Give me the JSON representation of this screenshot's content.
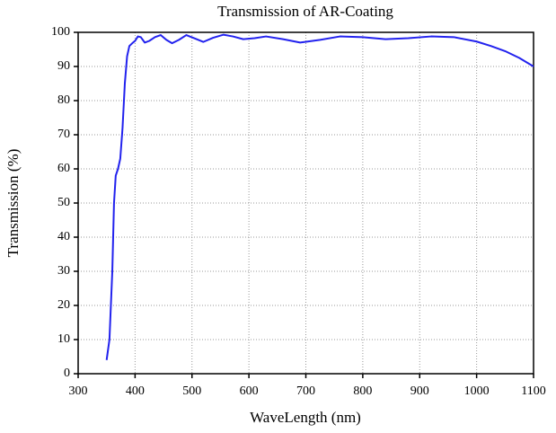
{
  "chart_data": {
    "type": "line",
    "title": "Transmission of AR-Coating",
    "x_label": "WaveLength (nm)",
    "y_label": "Transmission (%)",
    "x": [
      350,
      355,
      360,
      363,
      366,
      370,
      374,
      378,
      382,
      386,
      390,
      395,
      400,
      405,
      410,
      417,
      425,
      435,
      445,
      455,
      465,
      477,
      490,
      505,
      520,
      537,
      555,
      572,
      590,
      610,
      630,
      660,
      690,
      725,
      760,
      800,
      840,
      880,
      920,
      960,
      1000,
      1025,
      1050,
      1075,
      1100
    ],
    "series": [
      {
        "name": "Transmission",
        "color": "#2222ee",
        "values": [
          4,
          10,
          30,
          50,
          58,
          60,
          63,
          72,
          85,
          93,
          96,
          96.8,
          97.5,
          98.8,
          98.6,
          97,
          97.5,
          98.6,
          99.2,
          97.8,
          96.8,
          97.8,
          99.2,
          98.2,
          97.2,
          98.4,
          99.3,
          98.8,
          98,
          98.3,
          98.8,
          98,
          97,
          97.8,
          98.8,
          98.6,
          98,
          98.3,
          98.8,
          98.6,
          97.3,
          96,
          94.5,
          92.5,
          90
        ]
      }
    ],
    "xlim": [
      300,
      1100
    ],
    "ylim": [
      0,
      100
    ],
    "xticks": [
      300,
      400,
      500,
      600,
      700,
      800,
      900,
      1000,
      1100
    ],
    "yticks": [
      0,
      10,
      20,
      30,
      40,
      50,
      60,
      70,
      80,
      90,
      100
    ],
    "grid": true
  }
}
